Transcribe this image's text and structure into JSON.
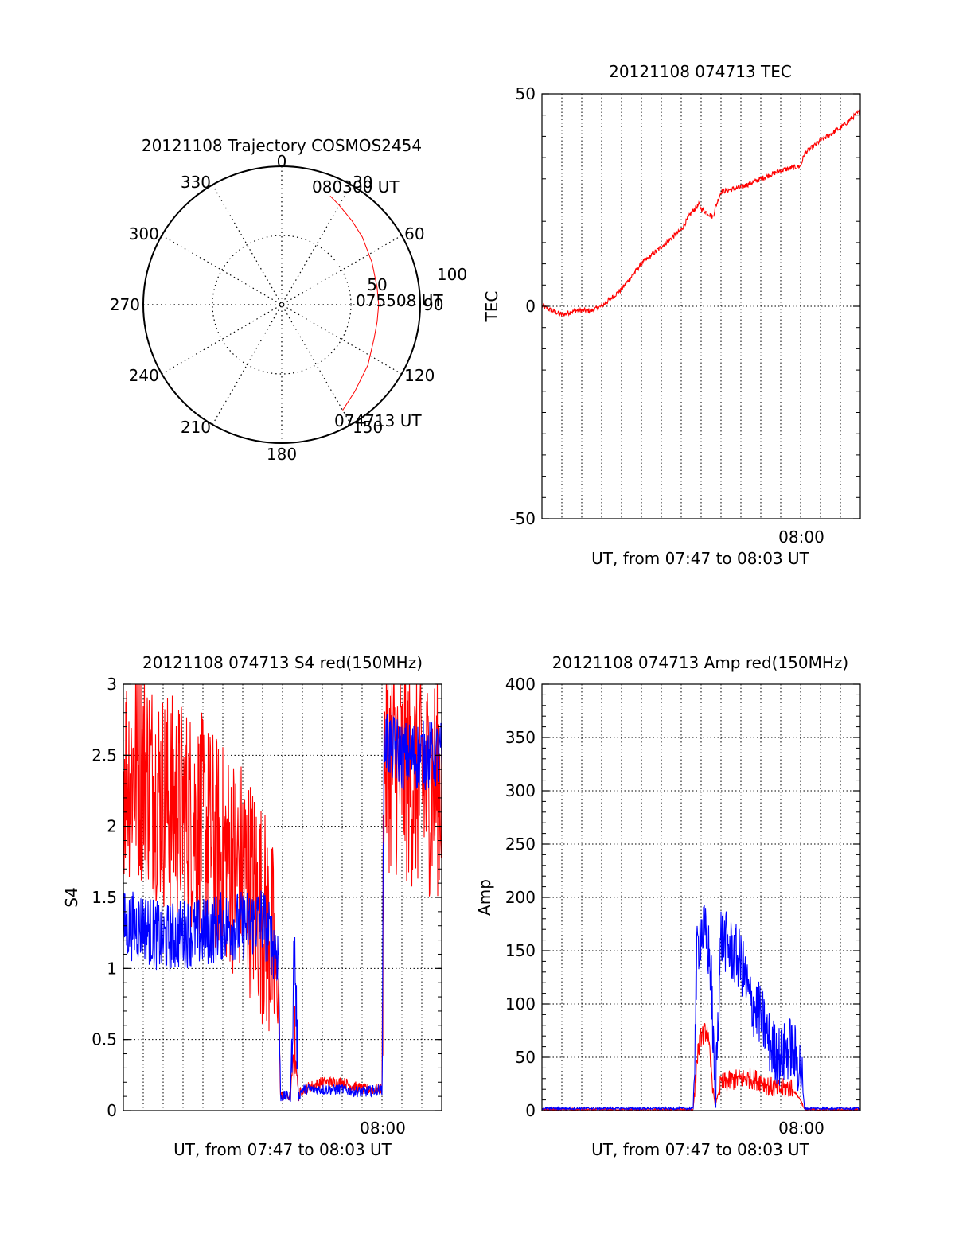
{
  "colors": {
    "red": "#ff0000",
    "blue": "#0000ff",
    "axis": "#000000"
  },
  "chart_data": [
    {
      "type": "polar",
      "title": "20121108 Trajectory COSMOS2454",
      "angle_labels": [
        "0",
        "30",
        "60",
        "90",
        "120",
        "150",
        "180",
        "210",
        "240",
        "270",
        "300",
        "330"
      ],
      "radial_labels": [
        "50",
        "100"
      ],
      "annotations": [
        "080300 UT",
        "075508 UT",
        "074713 UT"
      ],
      "series": [
        {
          "color": "red",
          "points": [
            [
              150,
              88
            ],
            [
              140,
              82
            ],
            [
              125,
              76
            ],
            [
              110,
              71
            ],
            [
              100,
              70
            ],
            [
              90,
              70
            ],
            [
              80,
              70
            ],
            [
              65,
              72
            ],
            [
              50,
              76
            ],
            [
              40,
              79
            ],
            [
              30,
              83
            ],
            [
              24,
              86
            ]
          ]
        }
      ]
    },
    {
      "type": "line",
      "title": "20121108 074713 TEC",
      "ylabel": "TEC",
      "xlabel": "UT, from 07:47 to 08:03 UT",
      "xtick_label": "08:00",
      "ylim": [
        -50,
        50
      ],
      "yticks": [
        "50",
        "0",
        "-50"
      ],
      "grid": true,
      "series": [
        {
          "color": "red",
          "x": [
            0,
            0.5,
            1,
            1.7,
            2.5,
            3,
            3.5,
            4,
            4.5,
            5,
            5.5,
            6,
            6.5,
            7,
            7.5,
            7.9,
            8.0,
            8.6,
            8.7,
            9,
            10,
            11,
            12,
            13,
            13.2,
            14,
            15,
            16
          ],
          "y": [
            0,
            -1,
            -2,
            -1,
            -1,
            0,
            2,
            4,
            7,
            10,
            12,
            14,
            16,
            18,
            22,
            24,
            23,
            21,
            23,
            27,
            28,
            30,
            32,
            33,
            36,
            39,
            42,
            46
          ]
        }
      ]
    },
    {
      "type": "line",
      "title": "20121108 074713 S4 red(150MHz)",
      "ylabel": "S4",
      "xlabel": "UT, from 07:47 to 08:03 UT",
      "xtick_label": "08:00",
      "ylim": [
        0,
        3
      ],
      "yticks": [
        "0",
        "0.5",
        "1",
        "1.5",
        "2",
        "2.5",
        "3"
      ],
      "grid": true,
      "series": [
        {
          "color": "red",
          "x": [
            0,
            1,
            2,
            3,
            4,
            5,
            6,
            7,
            7.4,
            7.8,
            7.9,
            8.4,
            8.6,
            8.8,
            9.0,
            10,
            11,
            12,
            13,
            13.1,
            14,
            15,
            16
          ],
          "y": [
            2.4,
            2.4,
            2.2,
            2.1,
            2.0,
            1.8,
            1.7,
            1.4,
            1.2,
            0.8,
            0.1,
            0.1,
            0.5,
            0.1,
            0.15,
            0.2,
            0.2,
            0.15,
            0.15,
            2.5,
            2.4,
            2.3,
            2.3
          ]
        },
        {
          "color": "blue",
          "x": [
            0,
            1,
            2,
            3,
            4,
            5,
            6,
            7,
            7.4,
            7.8,
            7.9,
            8.4,
            8.6,
            8.8,
            9.0,
            10,
            11,
            12,
            13,
            13.1,
            14,
            15,
            16
          ],
          "y": [
            1.3,
            1.3,
            1.2,
            1.25,
            1.25,
            1.3,
            1.3,
            1.35,
            1.2,
            1.1,
            0.1,
            0.1,
            1.2,
            0.1,
            0.15,
            0.15,
            0.15,
            0.13,
            0.15,
            2.6,
            2.5,
            2.5,
            2.5
          ]
        }
      ]
    },
    {
      "type": "line",
      "title": "20121108 074713 Amp red(150MHz)",
      "ylabel": "Amp",
      "xlabel": "UT, from 07:47 to 08:03 UT",
      "xtick_label": "08:00",
      "ylim": [
        0,
        400
      ],
      "yticks": [
        "0",
        "50",
        "100",
        "150",
        "200",
        "250",
        "300",
        "350",
        "400"
      ],
      "grid": true,
      "series": [
        {
          "color": "red",
          "x": [
            0,
            7.6,
            7.8,
            8.0,
            8.3,
            8.5,
            8.7,
            9.0,
            9.5,
            10,
            10.5,
            11,
            11.5,
            12,
            12.5,
            13,
            13.2,
            16
          ],
          "y": [
            1,
            1,
            50,
            70,
            75,
            40,
            5,
            25,
            28,
            30,
            30,
            28,
            22,
            20,
            22,
            10,
            1,
            1
          ]
        },
        {
          "color": "blue",
          "x": [
            0,
            7.6,
            7.8,
            8.0,
            8.3,
            8.5,
            8.7,
            9.0,
            9.5,
            10,
            10.5,
            11,
            11.5,
            12,
            12.5,
            13,
            13.2,
            16
          ],
          "y": [
            2,
            2,
            150,
            170,
            160,
            130,
            8,
            165,
            150,
            140,
            100,
            90,
            60,
            50,
            60,
            40,
            2,
            2
          ]
        }
      ]
    }
  ]
}
